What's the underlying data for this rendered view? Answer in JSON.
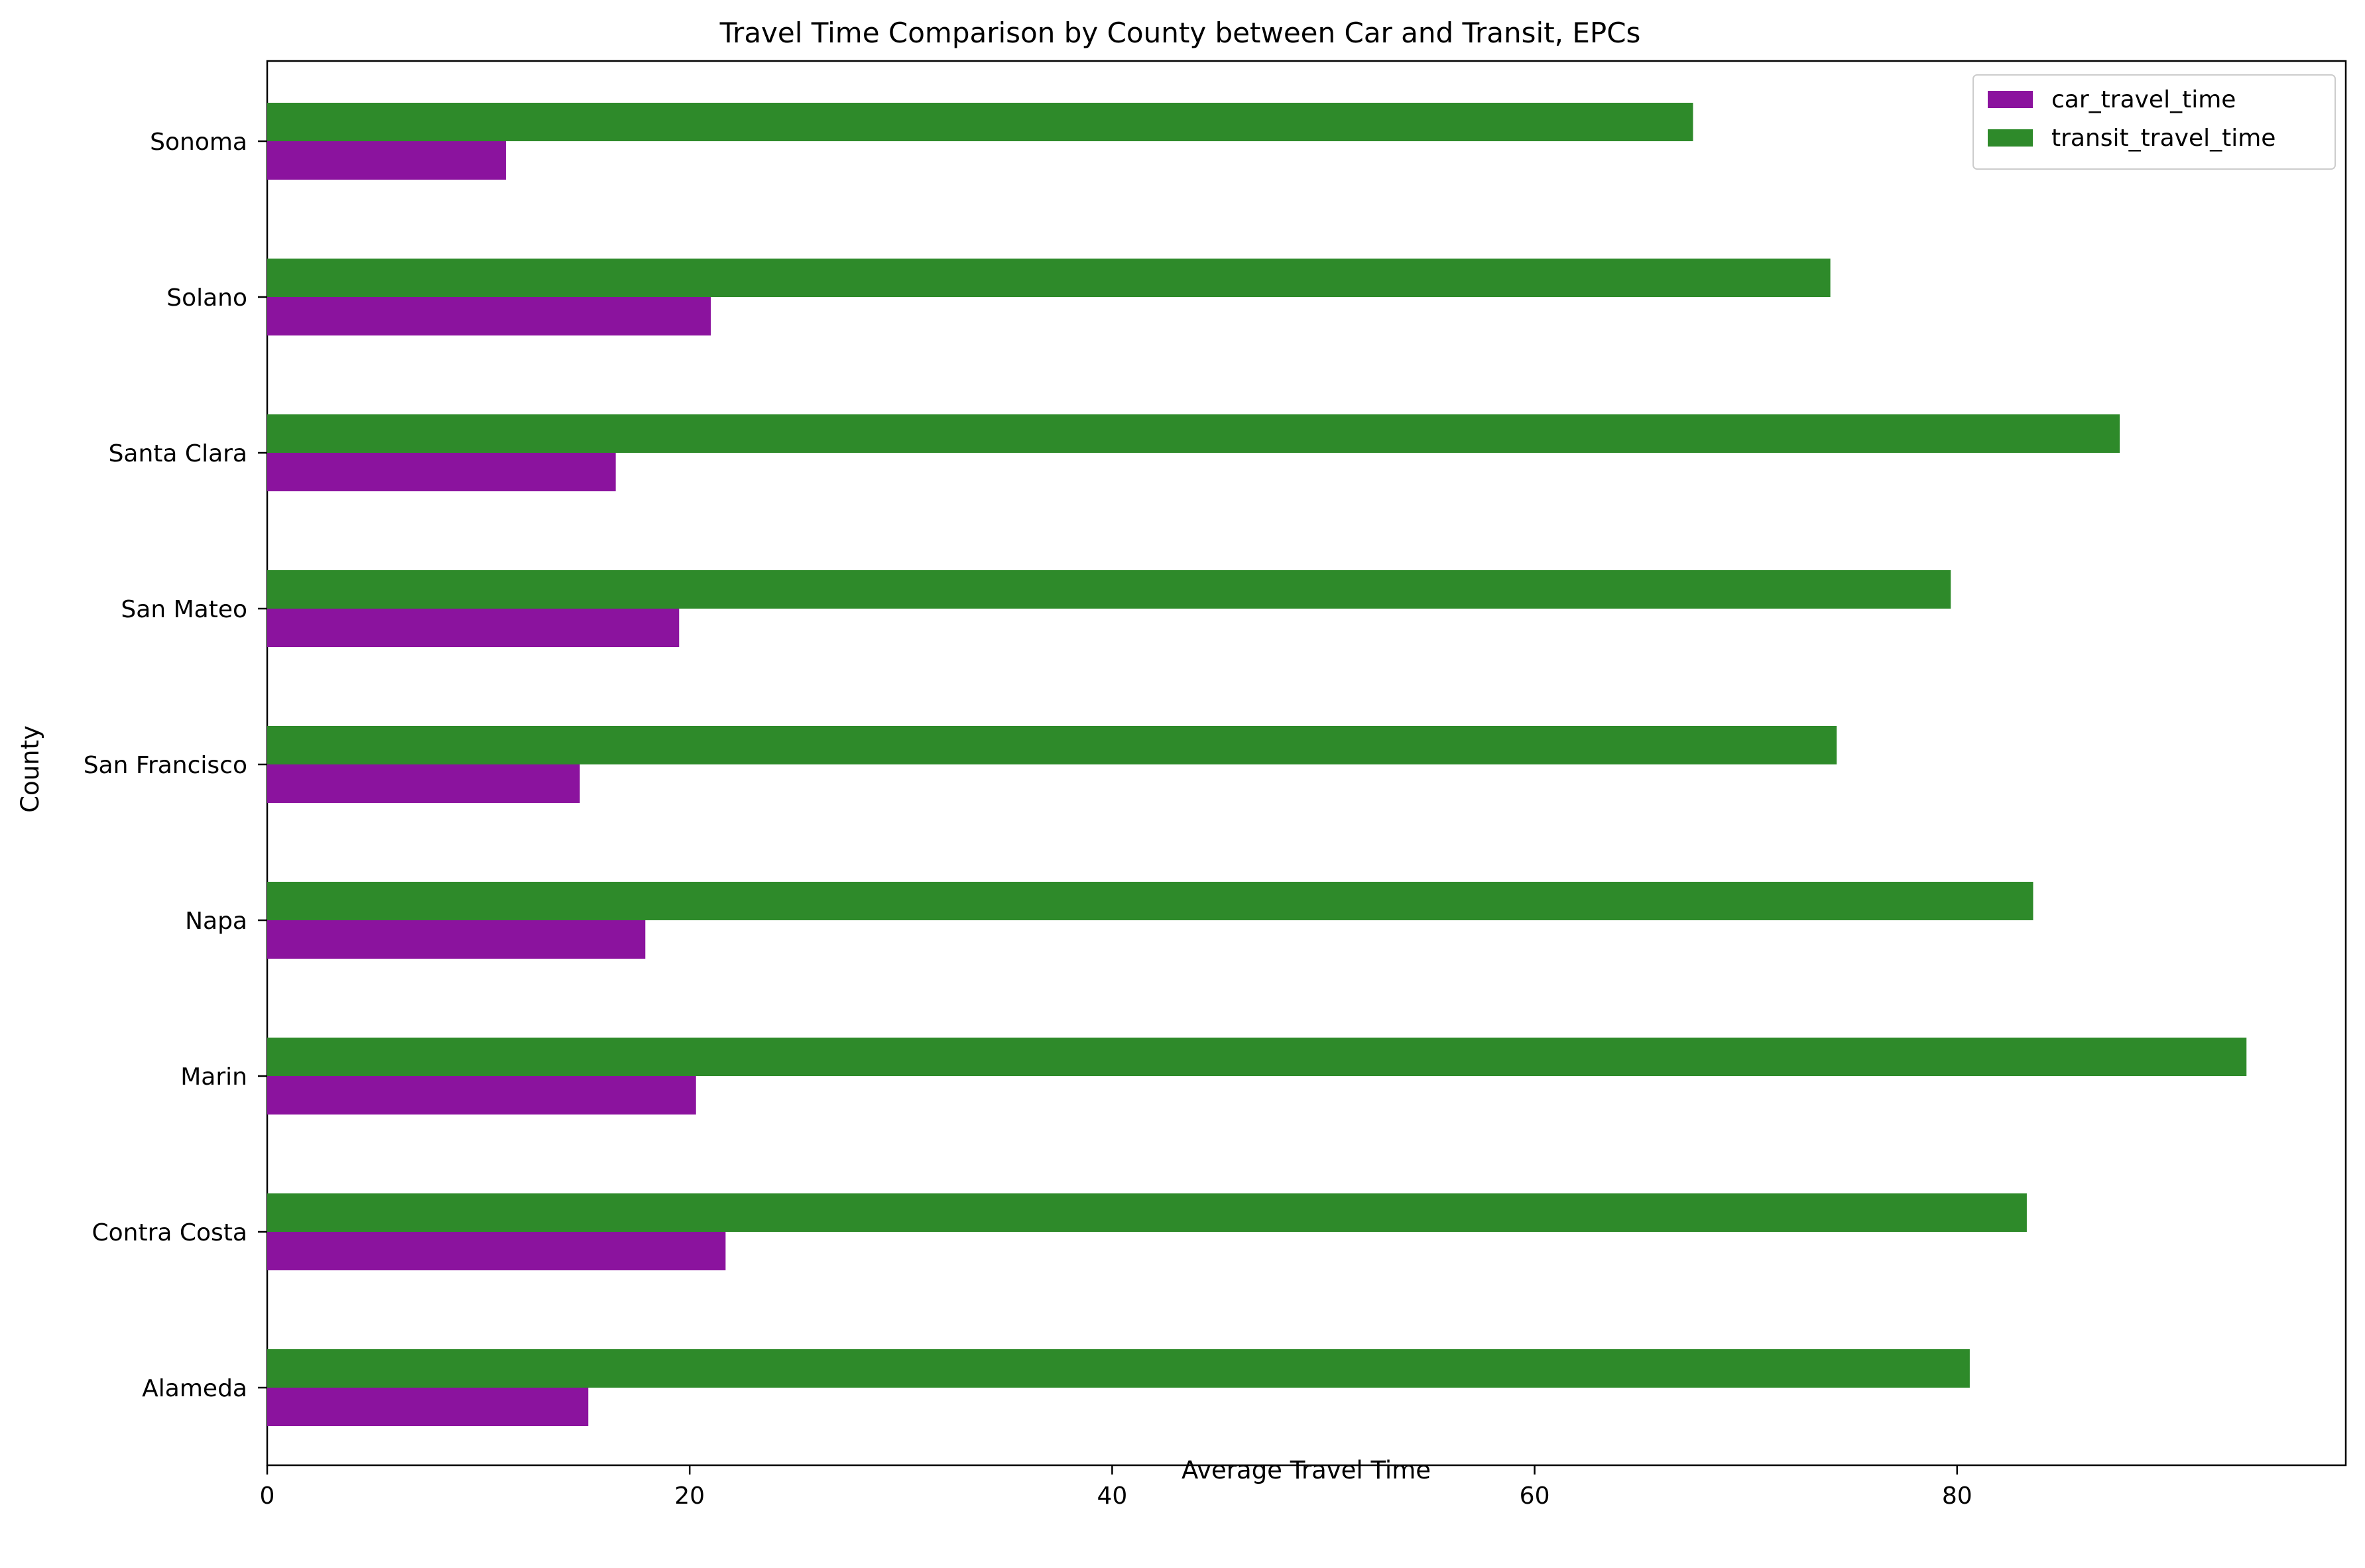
{
  "chart_data": {
    "type": "bar",
    "orientation": "horizontal",
    "title": "Travel Time Comparison by County between Car and Transit, EPCs",
    "xlabel": "Average Travel Time",
    "ylabel": "County",
    "xlim": [
      0,
      98.4
    ],
    "xticks": [
      0,
      20,
      40,
      60,
      80
    ],
    "categories": [
      "Alameda",
      "Contra Costa",
      "Marin",
      "Napa",
      "San Francisco",
      "San Mateo",
      "Santa Clara",
      "Solano",
      "Sonoma"
    ],
    "series": [
      {
        "name": "car_travel_time",
        "color": "#8b139e",
        "values": [
          15.2,
          21.7,
          20.3,
          17.9,
          14.8,
          19.5,
          16.5,
          21.0,
          11.3
        ]
      },
      {
        "name": "transit_travel_time",
        "color": "#2e8a2a",
        "values": [
          80.6,
          83.3,
          93.7,
          83.6,
          74.3,
          79.7,
          87.7,
          74.0,
          67.5
        ]
      }
    ],
    "legend": "top-right",
    "grid": false
  }
}
